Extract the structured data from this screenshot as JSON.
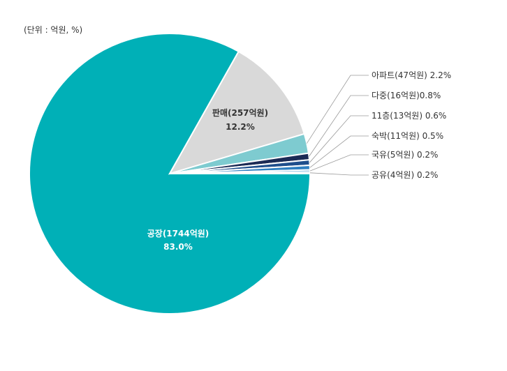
{
  "unit_note": "(단위 : 억원, %)",
  "chart_data": {
    "type": "pie",
    "slices": [
      {
        "label": "공장(1744억원)",
        "pct_text": "83.0%",
        "value": 1744,
        "percent": 83.0,
        "color": "#00b0b7"
      },
      {
        "label": "판매(257억원)",
        "pct_text": "12.2%",
        "value": 257,
        "percent": 12.2,
        "color": "#d9d9d9"
      },
      {
        "label": "아파트(47억원) 2.2%",
        "value": 47,
        "percent": 2.2,
        "color": "#7ecbd0"
      },
      {
        "label": "다중(16억원)0.8%",
        "value": 16,
        "percent": 0.8,
        "color": "#1b2a55"
      },
      {
        "label": "11층(13억원) 0.6%",
        "value": 13,
        "percent": 0.6,
        "color": "#1f4e8c"
      },
      {
        "label": "숙박(11억원) 0.5%",
        "value": 11,
        "percent": 0.5,
        "color": "#2f7fc1"
      },
      {
        "label": "국유(5억원) 0.2%",
        "value": 5,
        "percent": 0.2,
        "color": "#5aa7d6"
      },
      {
        "label": "공유(4억원) 0.2%",
        "value": 4,
        "percent": 0.2,
        "color": "#9fd3ea"
      }
    ]
  }
}
